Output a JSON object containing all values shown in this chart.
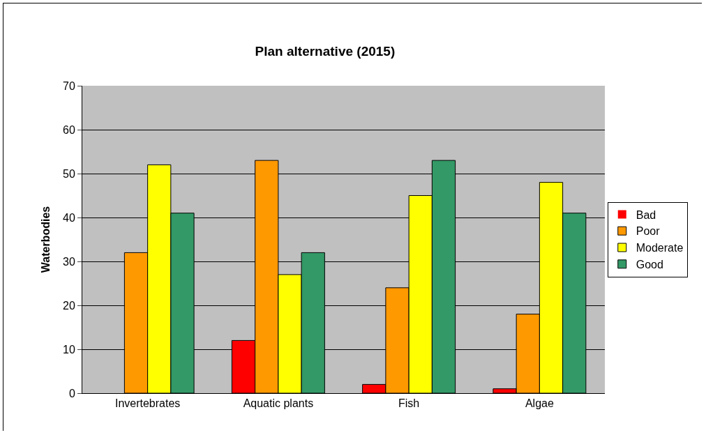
{
  "chart_data": {
    "type": "bar",
    "title": "Plan alternative (2015)",
    "ylabel": "Waterbodies",
    "categories": [
      "Invertebrates",
      "Aquatic plants",
      "Fish",
      "Algae"
    ],
    "series": [
      {
        "name": "Bad",
        "color": "#ff0000",
        "values": [
          0,
          12,
          2,
          1
        ]
      },
      {
        "name": "Poor",
        "color": "#ff9900",
        "values": [
          32,
          53,
          24,
          18
        ]
      },
      {
        "name": "Moderate",
        "color": "#ffff00",
        "values": [
          52,
          27,
          45,
          48
        ]
      },
      {
        "name": "Good",
        "color": "#339966",
        "values": [
          41,
          32,
          53,
          41
        ]
      }
    ],
    "ylim": [
      0,
      70
    ],
    "yticks": [
      0,
      10,
      20,
      30,
      40,
      50,
      60,
      70
    ],
    "grid": "y",
    "legend": "right"
  }
}
